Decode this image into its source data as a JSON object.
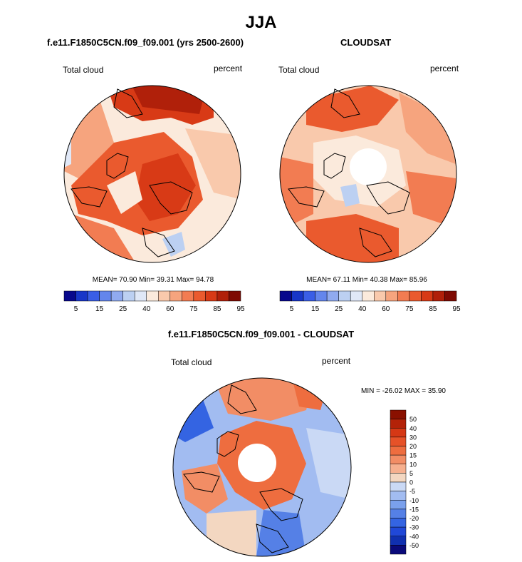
{
  "title": "JJA",
  "colors": {
    "seq": [
      "#08088c",
      "#1836c8",
      "#3a5ee6",
      "#6486ec",
      "#90aaef",
      "#bcd0f2",
      "#e0e8f7",
      "#fbeadc",
      "#f9c9ac",
      "#f6a47e",
      "#f27c52",
      "#ea5a2e",
      "#d83a16",
      "#b0200a",
      "#7e0a03"
    ],
    "diff": [
      "#0a0a7a",
      "#1030b0",
      "#2048d8",
      "#3464e2",
      "#5580e6",
      "#7aa0ec",
      "#a2bcf1",
      "#cad9f5",
      "#f3d7c1",
      "#f6b08f",
      "#f28d65",
      "#ee6d3f",
      "#e65228",
      "#d53815",
      "#b32208",
      "#8a1000"
    ],
    "map_base": "#fde3cf",
    "map_line": "#000000"
  },
  "panels": {
    "model": {
      "title": "f.e11.F1850C5CN.f09_f09.001 (yrs 2500-2600)",
      "variable": "Total cloud",
      "units": "percent",
      "stats_text": "MEAN=  70.90  Min=  39.31  Max=  94.78",
      "colorbar_labels": [
        "5",
        "15",
        "25",
        "40",
        "60",
        "75",
        "85",
        "95"
      ]
    },
    "obs": {
      "title": "CLOUDSAT",
      "variable": "Total cloud",
      "units": "percent",
      "stats_text": "MEAN=  67.11  Min=  40.38  Max=  85.96",
      "colorbar_labels": [
        "5",
        "15",
        "25",
        "40",
        "60",
        "75",
        "85",
        "95"
      ]
    },
    "diff": {
      "title": "f.e11.F1850C5CN.f09_f09.001 - CLOUDSAT",
      "variable": "Total cloud",
      "units": "percent",
      "stats_text": "MIN = -26.02 MAX =  35.90",
      "colorbar_labels": [
        "50",
        "40",
        "30",
        "20",
        "15",
        "10",
        "5",
        "0",
        "-5",
        "-10",
        "-15",
        "-20",
        "-30",
        "-40",
        "-50"
      ]
    }
  },
  "chart_data": [
    {
      "type": "heatmap",
      "projection": "polar stereographic (north)",
      "title": "f.e11.F1850C5CN.f09_f09.001 (yrs 2500-2600)",
      "variable": "Total cloud",
      "units": "percent",
      "mean": 70.9,
      "min": 39.31,
      "max": 94.78,
      "levels": [
        5,
        10,
        15,
        20,
        25,
        30,
        40,
        50,
        60,
        70,
        75,
        80,
        85,
        90,
        95
      ]
    },
    {
      "type": "heatmap",
      "projection": "polar stereographic (north)",
      "title": "CLOUDSAT",
      "variable": "Total cloud",
      "units": "percent",
      "mean": 67.11,
      "min": 40.38,
      "max": 85.96,
      "levels": [
        5,
        10,
        15,
        20,
        25,
        30,
        40,
        50,
        60,
        70,
        75,
        80,
        85,
        90,
        95
      ]
    },
    {
      "type": "heatmap",
      "projection": "polar stereographic (north)",
      "title": "f.e11.F1850C5CN.f09_f09.001 - CLOUDSAT",
      "variable": "Total cloud",
      "units": "percent",
      "min": -26.02,
      "max": 35.9,
      "levels": [
        -50,
        -40,
        -30,
        -20,
        -15,
        -10,
        -5,
        0,
        5,
        10,
        15,
        20,
        30,
        40,
        50
      ]
    }
  ]
}
